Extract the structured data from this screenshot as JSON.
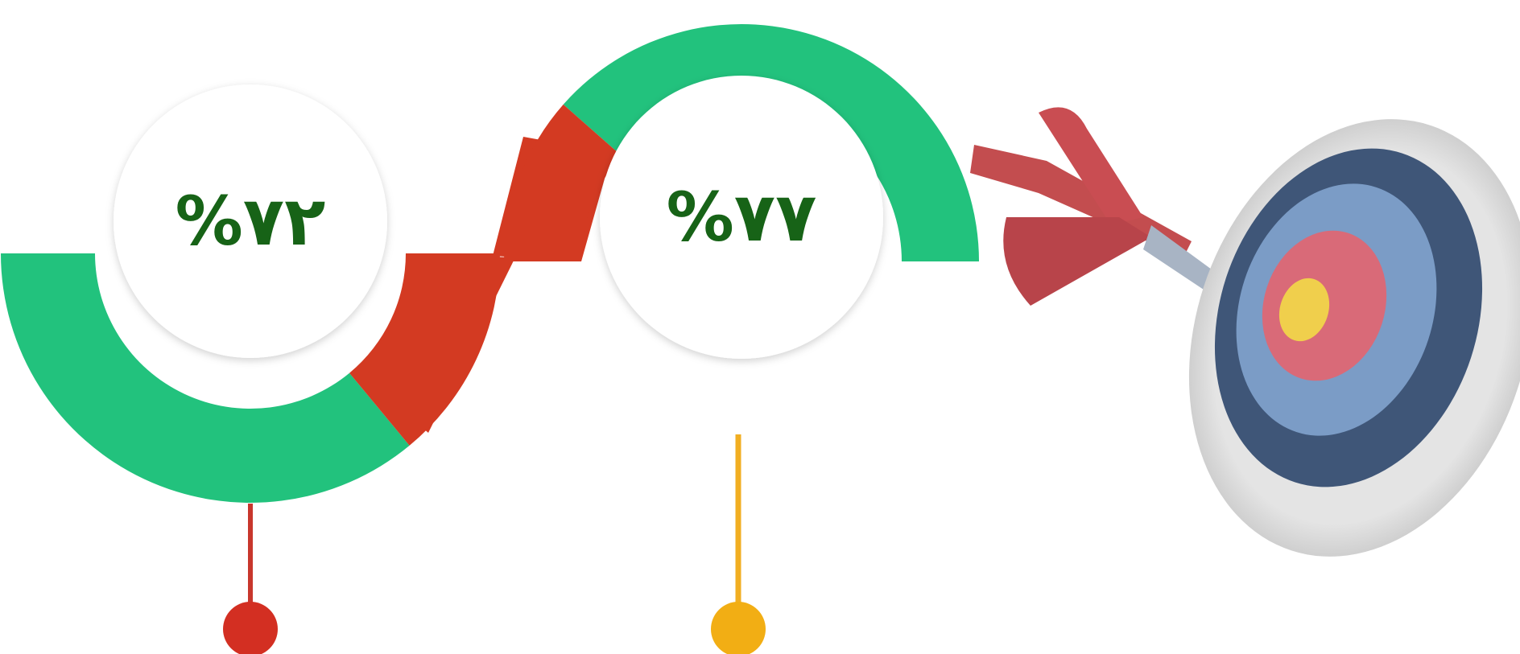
{
  "gauges": [
    {
      "value": 72,
      "label": "%۷۲"
    },
    {
      "value": 77,
      "label": "%۷۷"
    }
  ]
}
